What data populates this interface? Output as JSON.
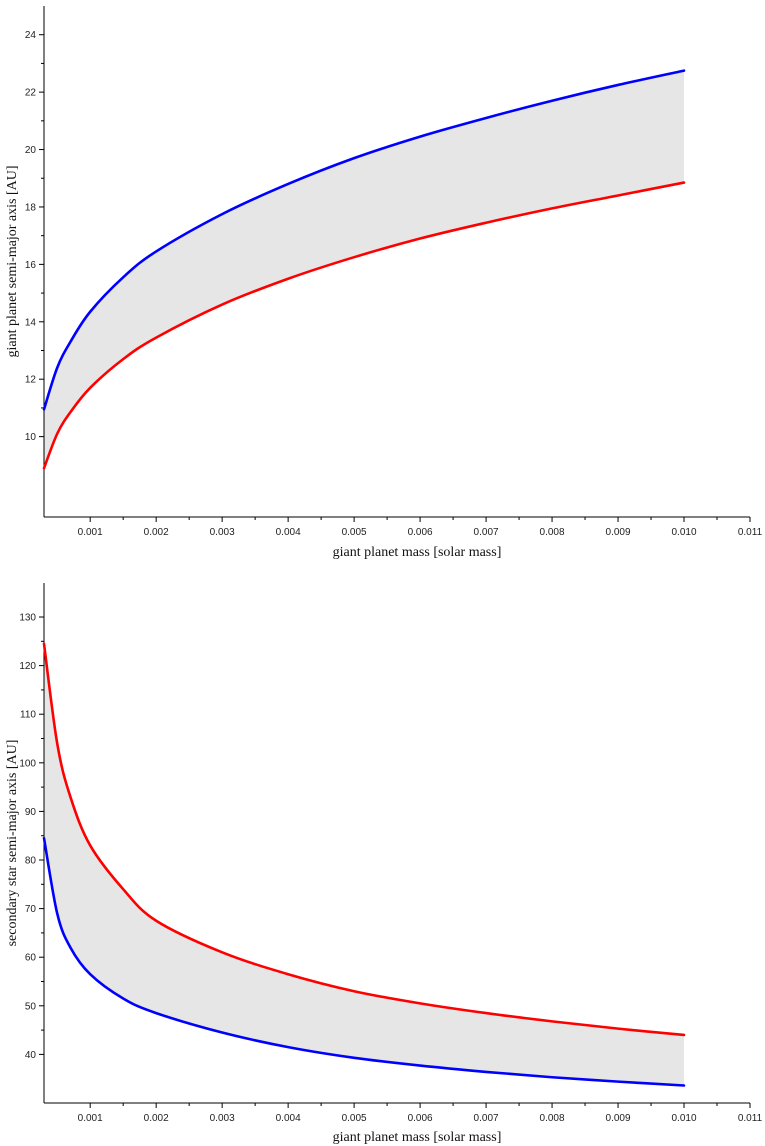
{
  "chart_data": [
    {
      "type": "area",
      "xlabel": "giant planet mass [solar mass]",
      "ylabel": "giant planet semi-major axis [AU]",
      "xlim": [
        0.0003,
        0.011
      ],
      "ylim": [
        7.2,
        25
      ],
      "xticks": [
        0.001,
        0.002,
        0.003,
        0.004,
        0.005,
        0.006,
        0.007,
        0.008,
        0.009,
        0.01,
        0.011
      ],
      "xtick_labels": [
        "0.001",
        "0.002",
        "0.003",
        "0.004",
        "0.005",
        "0.006",
        "0.007",
        "0.008",
        "0.009",
        "0.010",
        "0.011"
      ],
      "yticks": [
        10,
        12,
        14,
        16,
        18,
        20,
        22,
        24
      ],
      "ytick_labels": [
        "10",
        "12",
        "14",
        "16",
        "18",
        "20",
        "22",
        "24"
      ],
      "grid": false,
      "fill_color": "#e6e6e6",
      "series": [
        {
          "color": "#0000ff",
          "x": [
            0.0003,
            0.0005,
            0.0007,
            0.001,
            0.0015,
            0.002,
            0.003,
            0.004,
            0.005,
            0.006,
            0.007,
            0.008,
            0.009,
            0.01
          ],
          "y": [
            10.95,
            12.4,
            13.3,
            14.35,
            15.55,
            16.45,
            17.75,
            18.8,
            19.7,
            20.45,
            21.1,
            21.7,
            22.25,
            22.75
          ]
        },
        {
          "color": "#ff0000",
          "x": [
            0.0003,
            0.0005,
            0.0007,
            0.001,
            0.0015,
            0.002,
            0.003,
            0.004,
            0.005,
            0.006,
            0.007,
            0.008,
            0.009,
            0.01
          ],
          "y": [
            8.9,
            10.1,
            10.85,
            11.7,
            12.7,
            13.45,
            14.6,
            15.5,
            16.25,
            16.9,
            17.45,
            17.95,
            18.4,
            18.85
          ]
        }
      ]
    },
    {
      "type": "area",
      "xlabel": "giant planet mass [solar mass]",
      "ylabel": "secondary star semi-major axis [AU]",
      "xlim": [
        0.0003,
        0.011
      ],
      "ylim": [
        30,
        137
      ],
      "xticks": [
        0.001,
        0.002,
        0.003,
        0.004,
        0.005,
        0.006,
        0.007,
        0.008,
        0.009,
        0.01,
        0.011
      ],
      "xtick_labels": [
        "0.001",
        "0.002",
        "0.003",
        "0.004",
        "0.005",
        "0.006",
        "0.007",
        "0.008",
        "0.009",
        "0.010",
        "0.011"
      ],
      "yticks": [
        40,
        50,
        60,
        70,
        80,
        90,
        100,
        110,
        120,
        130
      ],
      "ytick_labels": [
        "40",
        "50",
        "60",
        "70",
        "80",
        "90",
        "100",
        "110",
        "120",
        "130"
      ],
      "grid": false,
      "fill_color": "#e6e6e6",
      "series": [
        {
          "color": "#ff0000",
          "x": [
            0.0003,
            0.0005,
            0.0007,
            0.001,
            0.0015,
            0.002,
            0.003,
            0.004,
            0.005,
            0.006,
            0.007,
            0.008,
            0.009,
            0.01
          ],
          "y": [
            124.5,
            104,
            93,
            83,
            74,
            67.5,
            61,
            56.5,
            53,
            50.5,
            48.5,
            46.8,
            45.3,
            44
          ]
        },
        {
          "color": "#0000ff",
          "x": [
            0.0003,
            0.0005,
            0.0007,
            0.001,
            0.0015,
            0.002,
            0.003,
            0.004,
            0.005,
            0.006,
            0.007,
            0.008,
            0.009,
            0.01
          ],
          "y": [
            84.5,
            69,
            62,
            56.5,
            51.5,
            48.5,
            44.5,
            41.5,
            39.3,
            37.7,
            36.4,
            35.3,
            34.4,
            33.6
          ]
        }
      ]
    }
  ]
}
